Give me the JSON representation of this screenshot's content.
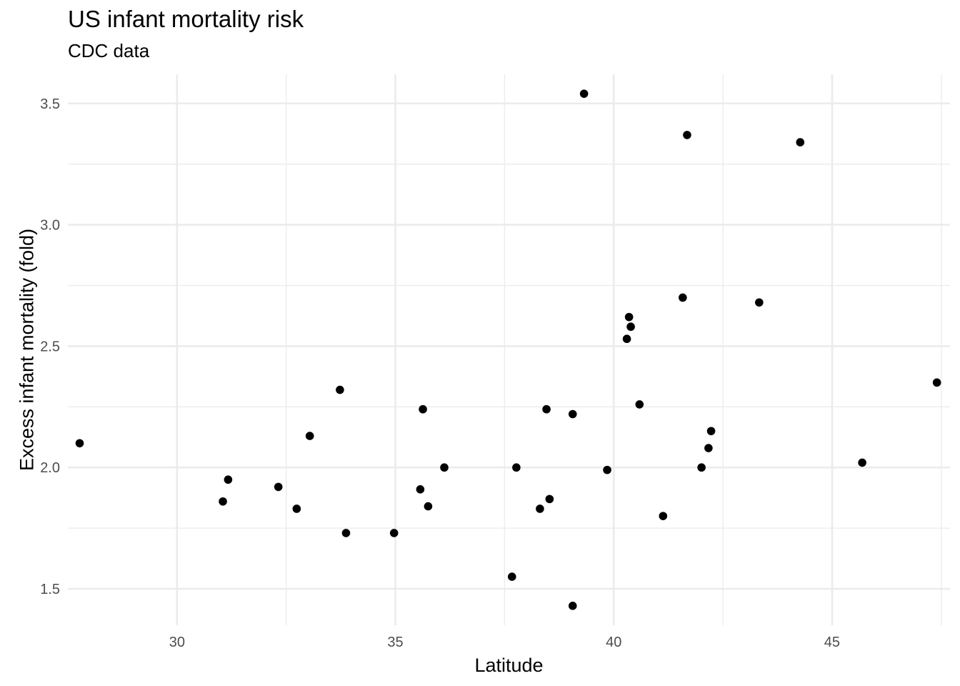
{
  "chart_data": {
    "type": "scatter",
    "title": "US infant mortality risk",
    "subtitle": "CDC data",
    "xlabel": "Latitude",
    "ylabel": "Excess infant mortality (fold)",
    "xlim": [
      27.5,
      47.7
    ],
    "ylim": [
      1.35,
      3.62
    ],
    "x_ticks": [
      30,
      35,
      40,
      45
    ],
    "y_ticks": [
      1.5,
      2.0,
      2.5,
      3.0,
      3.5
    ],
    "x_tick_labels": [
      "30",
      "35",
      "40",
      "45"
    ],
    "y_tick_labels": [
      "1.5",
      "2.0",
      "2.5",
      "3.0",
      "3.5"
    ],
    "grid": true,
    "point_color": "#000000",
    "grid_color": "#ebebeb",
    "points": [
      {
        "x": 27.77,
        "y": 2.1
      },
      {
        "x": 31.05,
        "y": 1.86
      },
      {
        "x": 31.17,
        "y": 1.95
      },
      {
        "x": 32.32,
        "y": 1.92
      },
      {
        "x": 32.74,
        "y": 1.83
      },
      {
        "x": 33.04,
        "y": 2.13
      },
      {
        "x": 33.73,
        "y": 2.32
      },
      {
        "x": 33.87,
        "y": 1.73
      },
      {
        "x": 34.97,
        "y": 1.73
      },
      {
        "x": 35.57,
        "y": 1.91
      },
      {
        "x": 35.63,
        "y": 2.24
      },
      {
        "x": 35.75,
        "y": 1.84
      },
      {
        "x": 36.12,
        "y": 2.0
      },
      {
        "x": 37.67,
        "y": 1.55
      },
      {
        "x": 37.77,
        "y": 2.0
      },
      {
        "x": 38.31,
        "y": 1.83
      },
      {
        "x": 38.46,
        "y": 2.24
      },
      {
        "x": 38.53,
        "y": 1.87
      },
      {
        "x": 39.06,
        "y": 1.43
      },
      {
        "x": 39.06,
        "y": 2.22
      },
      {
        "x": 39.32,
        "y": 3.54
      },
      {
        "x": 39.85,
        "y": 1.99
      },
      {
        "x": 40.3,
        "y": 2.53
      },
      {
        "x": 40.35,
        "y": 2.62
      },
      {
        "x": 40.39,
        "y": 2.58
      },
      {
        "x": 40.59,
        "y": 2.26
      },
      {
        "x": 41.13,
        "y": 1.8
      },
      {
        "x": 41.58,
        "y": 2.7
      },
      {
        "x": 41.68,
        "y": 3.37
      },
      {
        "x": 42.01,
        "y": 2.0
      },
      {
        "x": 42.17,
        "y": 2.08
      },
      {
        "x": 42.23,
        "y": 2.15
      },
      {
        "x": 43.33,
        "y": 2.68
      },
      {
        "x": 44.27,
        "y": 3.34
      },
      {
        "x": 45.69,
        "y": 2.02
      },
      {
        "x": 47.4,
        "y": 2.35
      }
    ]
  }
}
